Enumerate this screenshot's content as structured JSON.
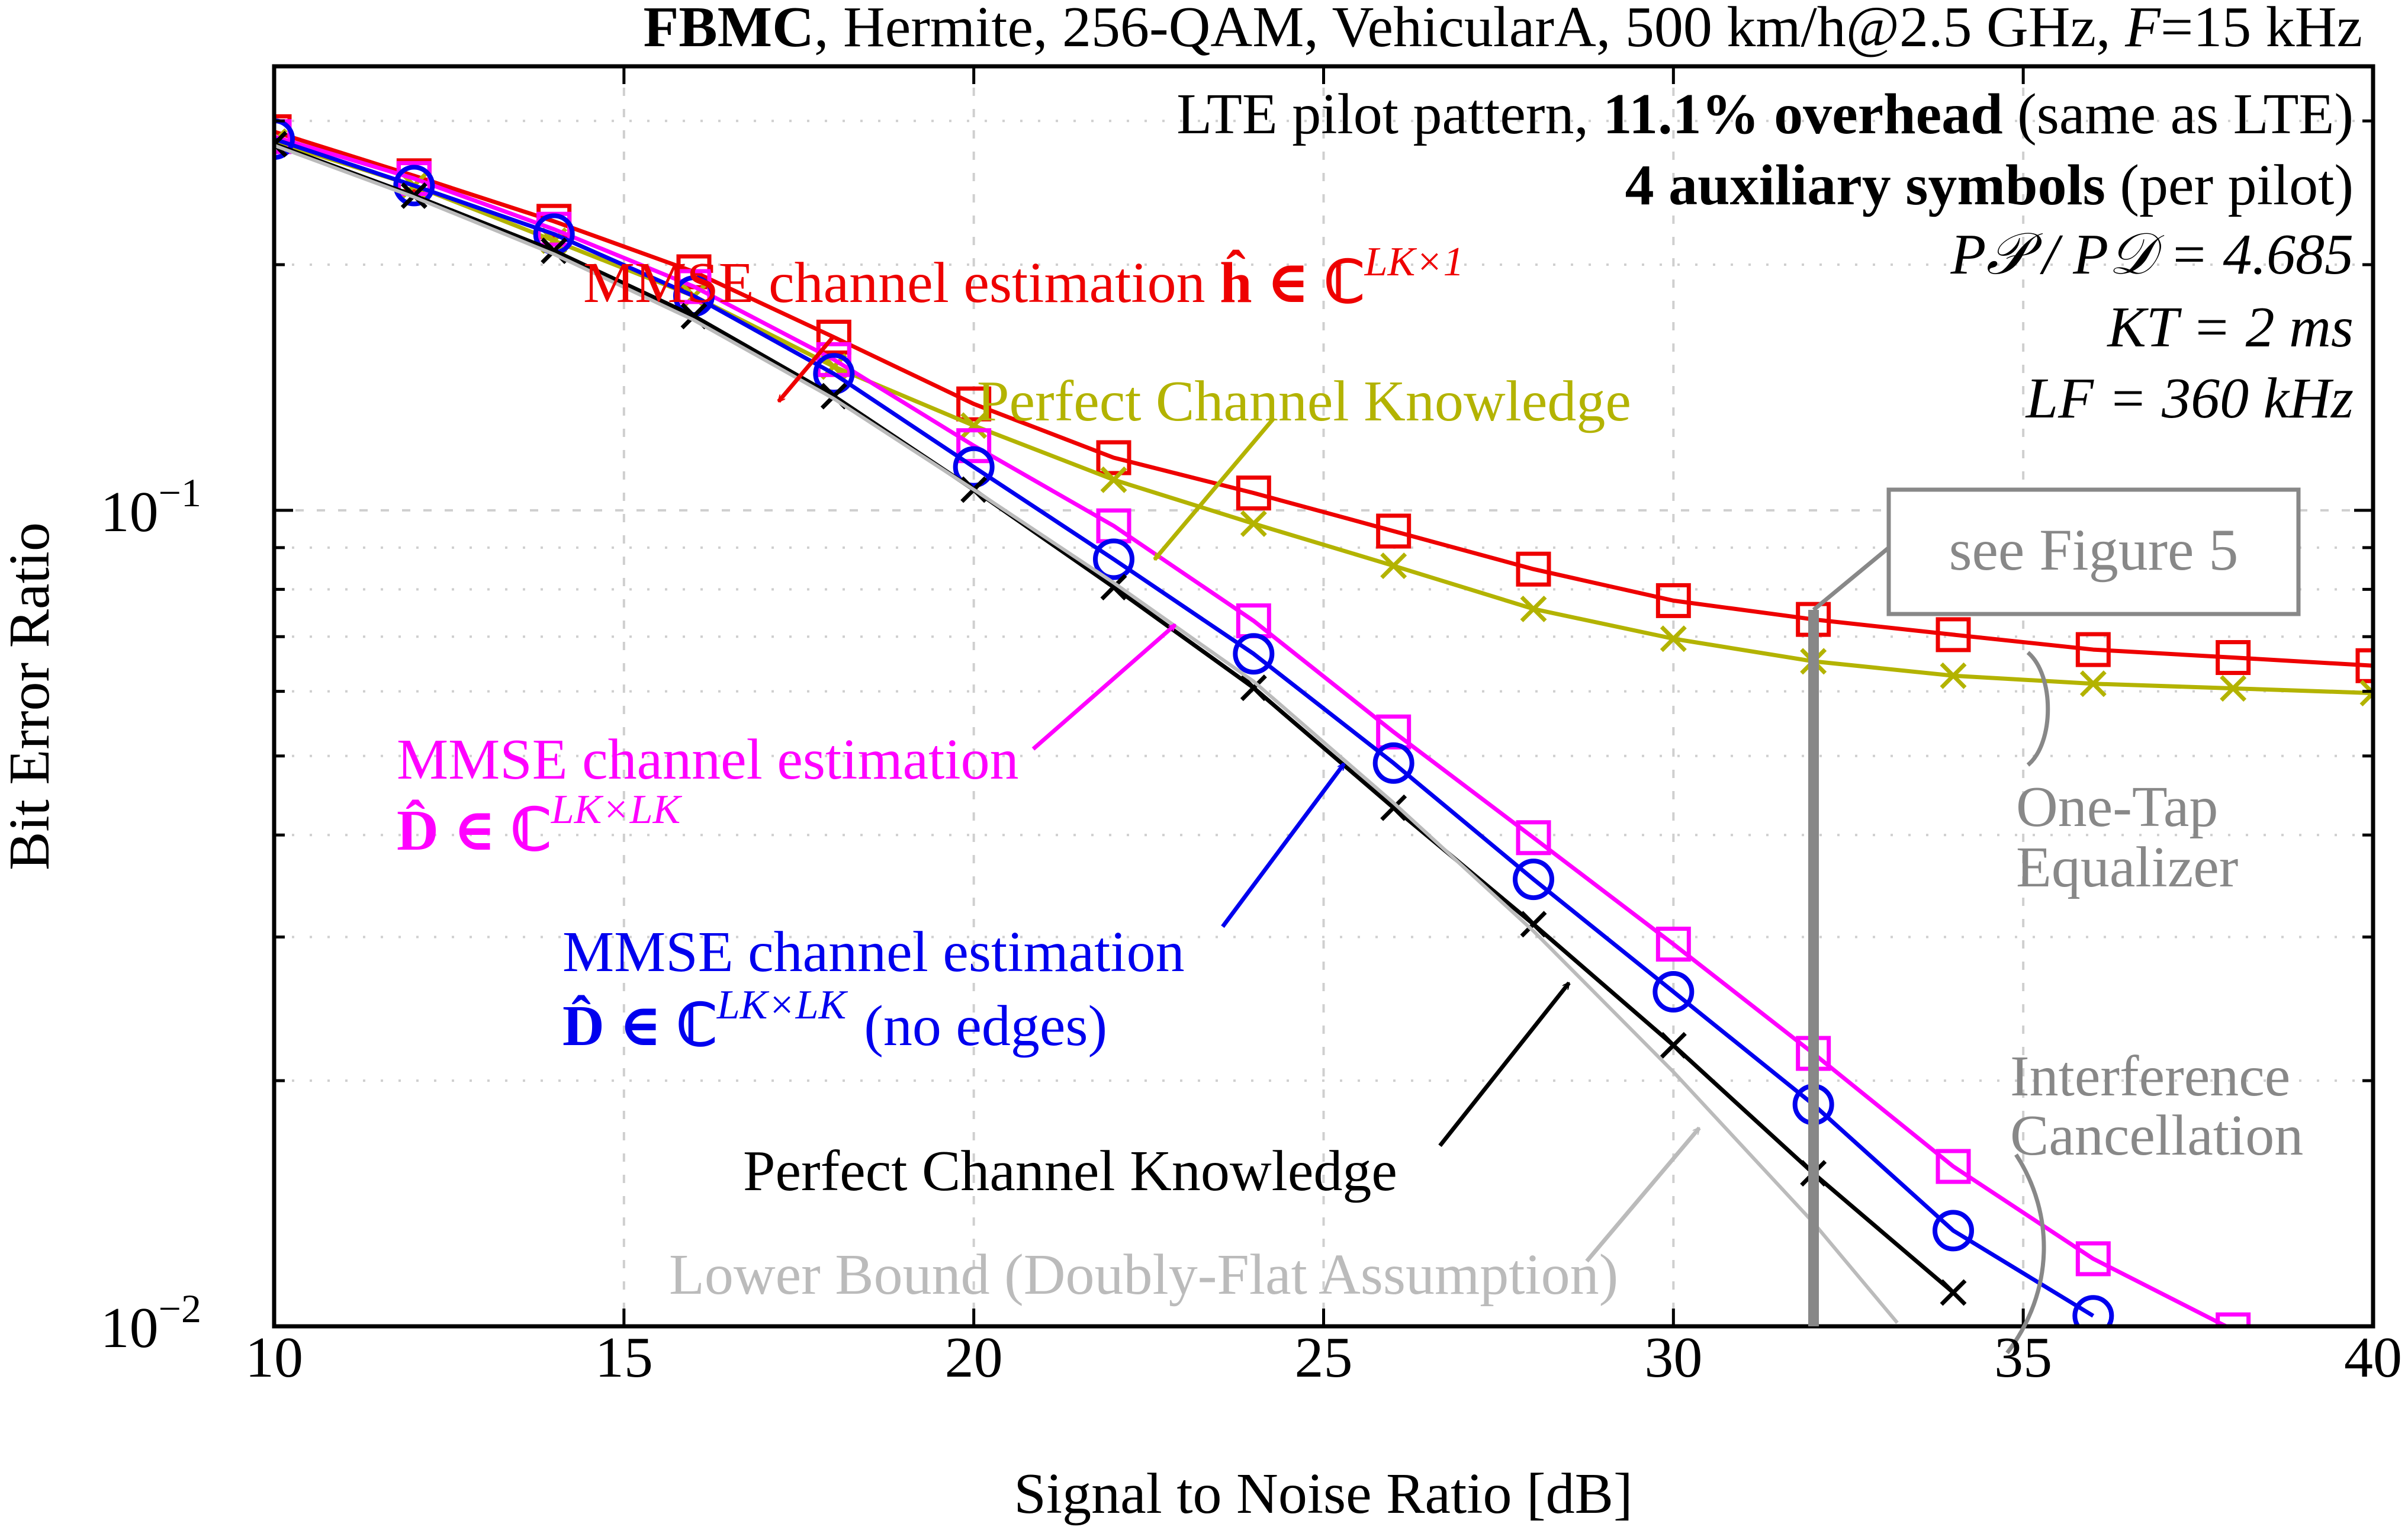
{
  "chart_data": {
    "type": "line",
    "title_parts": {
      "scheme": "FBMC",
      "rest": ", Hermite, 256-QAM, VehicularA, 500 km/h@2.5 GHz, ",
      "f_var": "F",
      "f_val": "=15 kHz"
    },
    "xlabel": "Signal to Noise Ratio [dB]",
    "ylabel": "Bit Error Ratio",
    "xlim": [
      10,
      40
    ],
    "ylim": [
      0.01,
      0.35
    ],
    "yscale": "log",
    "grid": true,
    "x_ticks": [
      "10",
      "15",
      "20",
      "25",
      "30",
      "35",
      "40"
    ],
    "y_ticks": [
      {
        "value": 0.1,
        "base": "10",
        "exp": "−1"
      },
      {
        "value": 0.01,
        "base": "10",
        "exp": "−2"
      }
    ],
    "info": {
      "line1_a": "LTE pilot pattern, ",
      "line1_b": "11.1% overhead",
      "line1_c": " (same as LTE)",
      "line2_a": "4 auxiliary symbols",
      "line2_b": " (per pilot)",
      "line3": "P𝒫 / P𝒟 = 4.685",
      "line4": "KT = 2 ms",
      "line5": "LF = 360 kHz"
    },
    "annotations": {
      "see_figure": "see Figure 5",
      "one_tap_1": "One-Tap",
      "one_tap_2": "Equalizer",
      "ic_1": "Interference",
      "ic_2": "Cancellation",
      "red_label_text": "MMSE channel estimation ",
      "red_label_math": "ĥ ∈ ℂ",
      "red_label_sup": "LK×1",
      "olive_label": "Perfect Channel Knowledge",
      "magenta_label_1": "MMSE channel estimation",
      "magenta_label_math": "D̂ ∈ ℂ",
      "magenta_label_sup": "LK×LK",
      "blue_label_1": "MMSE channel estimation",
      "blue_label_math": "D̂ ∈ ℂ",
      "blue_label_sup": "LK×LK",
      "blue_label_tail": "(no edges)",
      "black_label": "Perfect Channel Knowledge",
      "gray_label": "Lower Bound (Doubly-Flat Assumption)"
    },
    "series": [
      {
        "name": "MMSE channel estimation h (one-tap)",
        "color": "#ee0000",
        "marker": "square",
        "x": [
          10,
          12,
          14,
          16,
          18,
          20,
          22,
          24,
          26,
          28,
          30,
          32,
          34,
          36,
          38,
          40
        ],
        "y": [
          0.291,
          0.257,
          0.226,
          0.196,
          0.163,
          0.135,
          0.116,
          0.105,
          0.0943,
          0.0847,
          0.0775,
          0.0735,
          0.0704,
          0.0675,
          0.066,
          0.0645
        ]
      },
      {
        "name": "Perfect Channel Knowledge (one-tap)",
        "color": "#b3b300",
        "marker": "x",
        "x": [
          10,
          12,
          14,
          16,
          18,
          20,
          22,
          24,
          26,
          28,
          30,
          32,
          34,
          36,
          38,
          40
        ],
        "y": [
          0.283,
          0.25,
          0.214,
          0.183,
          0.15,
          0.127,
          0.109,
          0.0963,
          0.0855,
          0.0757,
          0.0696,
          0.0653,
          0.0627,
          0.0613,
          0.0605,
          0.0597
        ]
      },
      {
        "name": "MMSE channel estimation D (interference cancellation)",
        "color": "#ff00ff",
        "marker": "square",
        "x": [
          10,
          12,
          14,
          16,
          18,
          20,
          22,
          24,
          26,
          28,
          30,
          32,
          34,
          36,
          38
        ],
        "y": [
          0.287,
          0.255,
          0.221,
          0.188,
          0.153,
          0.12,
          0.0957,
          0.0732,
          0.0535,
          0.0397,
          0.0294,
          0.0216,
          0.0157,
          0.0121,
          0.0099
        ]
      },
      {
        "name": "MMSE channel estimation D no edges (interference cancellation)",
        "color": "#0000ee",
        "marker": "circle",
        "x": [
          10,
          12,
          14,
          16,
          18,
          20,
          22,
          24,
          26,
          28,
          30,
          32,
          34,
          36
        ],
        "y": [
          0.285,
          0.25,
          0.218,
          0.183,
          0.147,
          0.113,
          0.0871,
          0.0667,
          0.049,
          0.0353,
          0.0257,
          0.0187,
          0.0131,
          0.0103
        ]
      },
      {
        "name": "Perfect Channel Knowledge (interference cancellation)",
        "color": "#000000",
        "marker": "x",
        "x": [
          10,
          12,
          14,
          16,
          18,
          20,
          22,
          24,
          26,
          28,
          30,
          32,
          34
        ],
        "y": [
          0.281,
          0.243,
          0.208,
          0.173,
          0.138,
          0.106,
          0.0805,
          0.0606,
          0.0432,
          0.0311,
          0.0221,
          0.0154,
          0.011
        ]
      },
      {
        "name": "Lower Bound (Doubly-Flat Assumption)",
        "color": "#bbbbbb",
        "marker": "none",
        "x": [
          10,
          12,
          14,
          16,
          18,
          20,
          22,
          24,
          26,
          28,
          30,
          32,
          33.2
        ],
        "y": [
          0.28,
          0.242,
          0.206,
          0.171,
          0.137,
          0.106,
          0.0815,
          0.0617,
          0.0438,
          0.0305,
          0.0205,
          0.0134,
          0.0101
        ]
      }
    ]
  }
}
